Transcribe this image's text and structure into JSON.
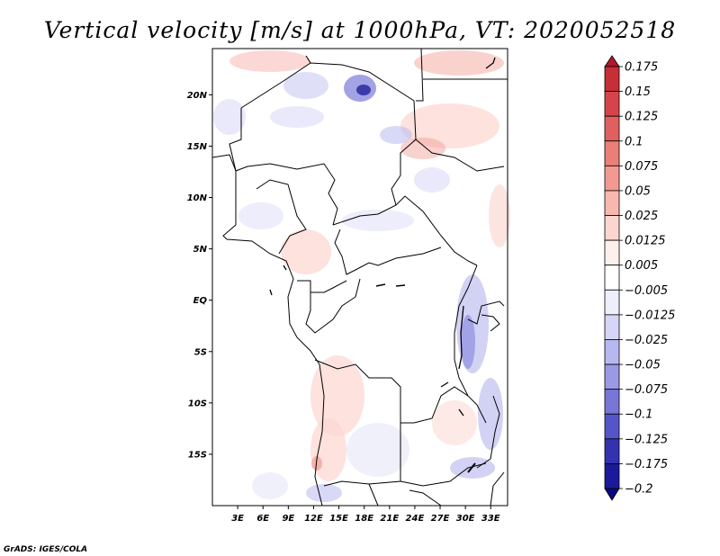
{
  "title": "Vertical velocity [m/s] at 1000hPa, VT: 2020052518",
  "credit": "GrADS: IGES/COLA",
  "map": {
    "lon_range": [
      0,
      35
    ],
    "lat_range": [
      -20,
      24.5
    ],
    "lat_labels": [
      "20N",
      "15N",
      "10N",
      "5N",
      "EQ",
      "5S",
      "10S",
      "15S"
    ],
    "lat_values": [
      20,
      15,
      10,
      5,
      0,
      -5,
      -10,
      -15
    ],
    "lon_labels": [
      "3E",
      "6E",
      "9E",
      "12E",
      "15E",
      "18E",
      "21E",
      "24E",
      "27E",
      "30E",
      "33E"
    ],
    "lon_values": [
      3,
      6,
      9,
      12,
      15,
      18,
      21,
      24,
      27,
      30,
      33
    ]
  },
  "colorbar": {
    "levels": [
      "0.175",
      "0.15",
      "0.125",
      "0.1",
      "0.075",
      "0.05",
      "0.025",
      "0.0125",
      "0.005",
      "−0.005",
      "−0.0125",
      "−0.025",
      "−0.05",
      "−0.075",
      "−0.1",
      "−0.125",
      "−0.175",
      "−0.2"
    ],
    "colors": [
      "#b2182b",
      "#c62f36",
      "#d6434a",
      "#e0605f",
      "#ea7f78",
      "#f29a92",
      "#f7b8b0",
      "#fbd6d0",
      "#fdefec",
      "#ffffff",
      "#eeeefc",
      "#d5d5f6",
      "#b8b8f0",
      "#9999e6",
      "#7777d8",
      "#5555c8",
      "#3333b0",
      "#1a1a9a",
      "#0a0a80"
    ]
  }
}
